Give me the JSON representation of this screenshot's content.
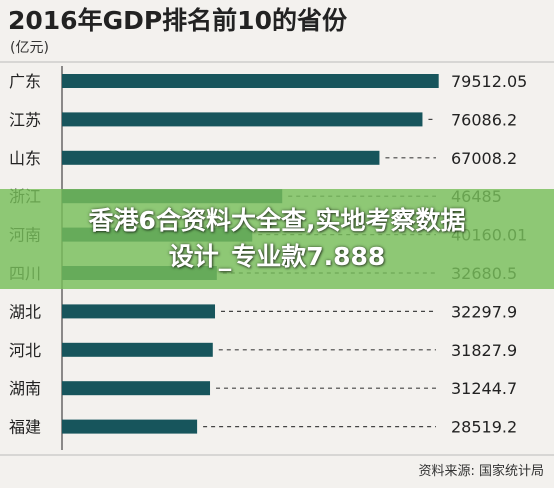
{
  "chart_data": {
    "type": "bar",
    "orientation": "horizontal",
    "title": "2016年GDP排名前10的省份",
    "unit_label": "(亿元)",
    "categories": [
      "广东",
      "江苏",
      "山东",
      "浙江",
      "河南",
      "四川",
      "湖北",
      "河北",
      "湖南",
      "福建"
    ],
    "values": [
      79512.05,
      76086.2,
      67008.2,
      46485,
      40160.01,
      32680.5,
      32297.9,
      31827.9,
      31244.7,
      28519.2
    ],
    "value_labels": [
      "79512.05",
      "76086.2",
      "67008.2",
      "46485",
      "40160.01",
      "32680.5",
      "32297.9",
      "31827.9",
      "31244.7",
      "28519.2"
    ],
    "xlim": [
      0,
      80000
    ],
    "grid": false,
    "source": "资料来源: 国家统计局",
    "bar_color": "#17555c"
  },
  "overlay": {
    "line1": "香港6合资料大全查,实地考察数据",
    "line2": "设计_专业款7.888",
    "color": "#78be5a"
  }
}
